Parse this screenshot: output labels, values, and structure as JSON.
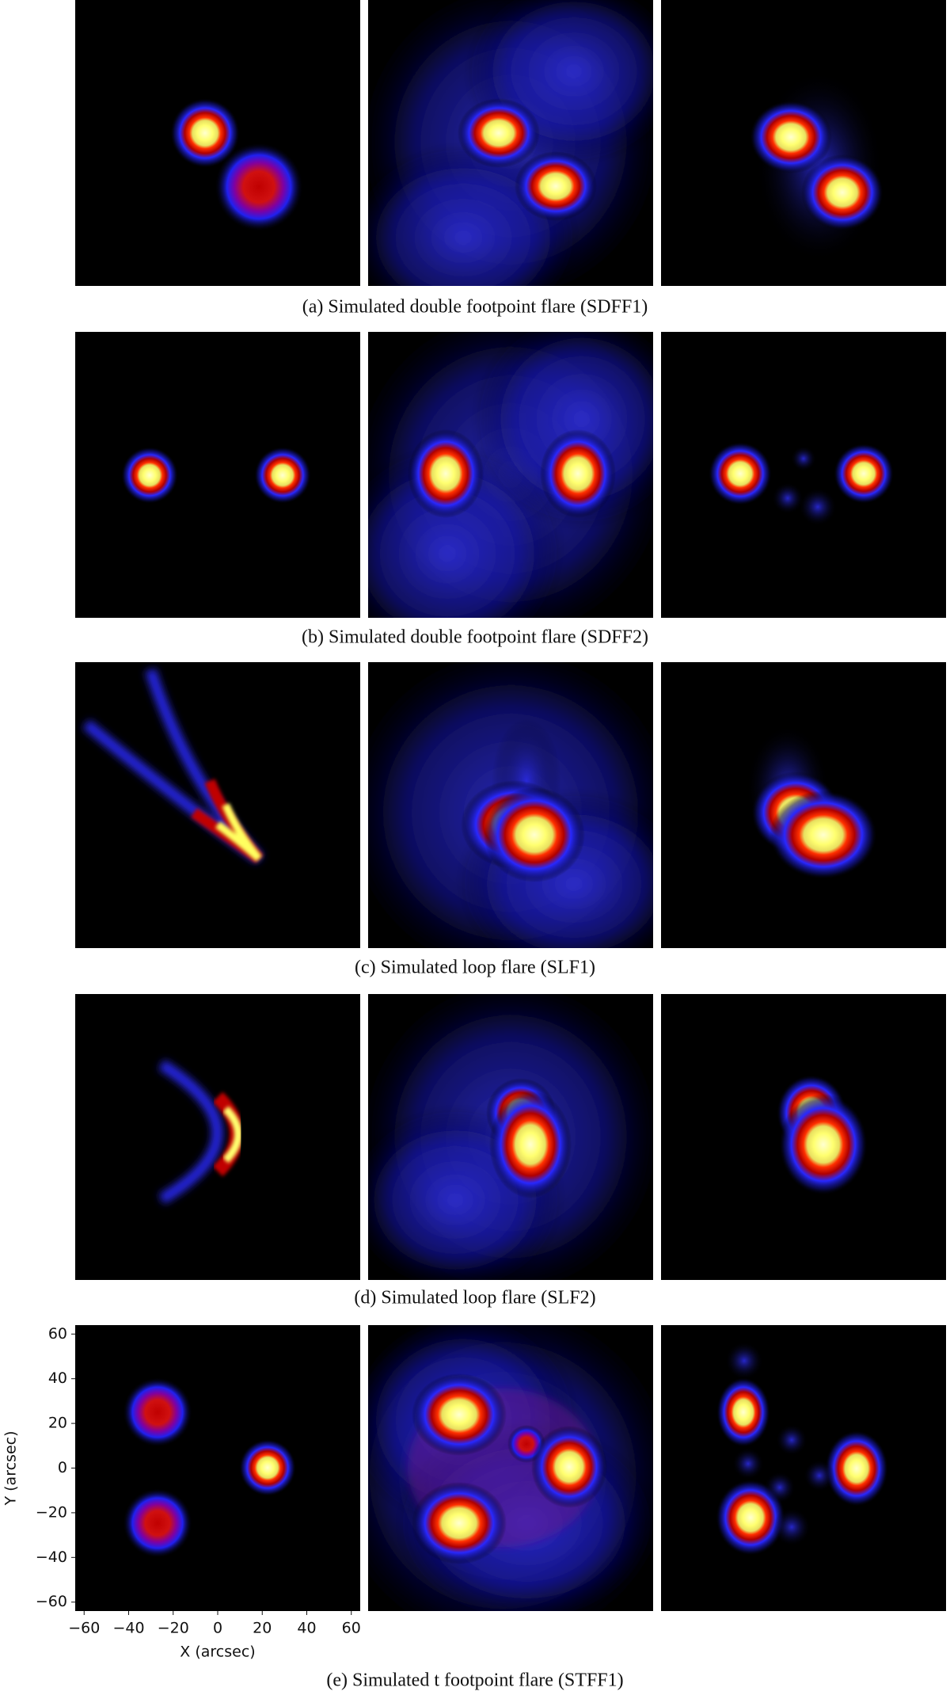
{
  "rows": [
    {
      "caption": "(a) Simulated double footpoint flare (SDFF1)"
    },
    {
      "caption": "(b) Simulated double footpoint flare (SDFF2)"
    },
    {
      "caption": "(c) Simulated loop flare (SLF1)"
    },
    {
      "caption": "(d) Simulated loop flare (SLF2)"
    },
    {
      "caption": "(e) Simulated t footpoint flare (STFF1)"
    }
  ],
  "axes": {
    "xlabel": "X (arcsec)",
    "ylabel": "Y (arcsec)",
    "xlim": [
      -64,
      64
    ],
    "ylim": [
      -64,
      64
    ],
    "xticks": [
      {
        "value": -60,
        "label": "−60"
      },
      {
        "value": -40,
        "label": "−40"
      },
      {
        "value": -20,
        "label": "−20"
      },
      0,
      20,
      40,
      60
    ],
    "yticks": [
      {
        "value": -60,
        "label": "−60"
      },
      {
        "value": -40,
        "label": "−40"
      },
      {
        "value": -20,
        "label": "−20"
      },
      0,
      20,
      40,
      60
    ]
  }
}
